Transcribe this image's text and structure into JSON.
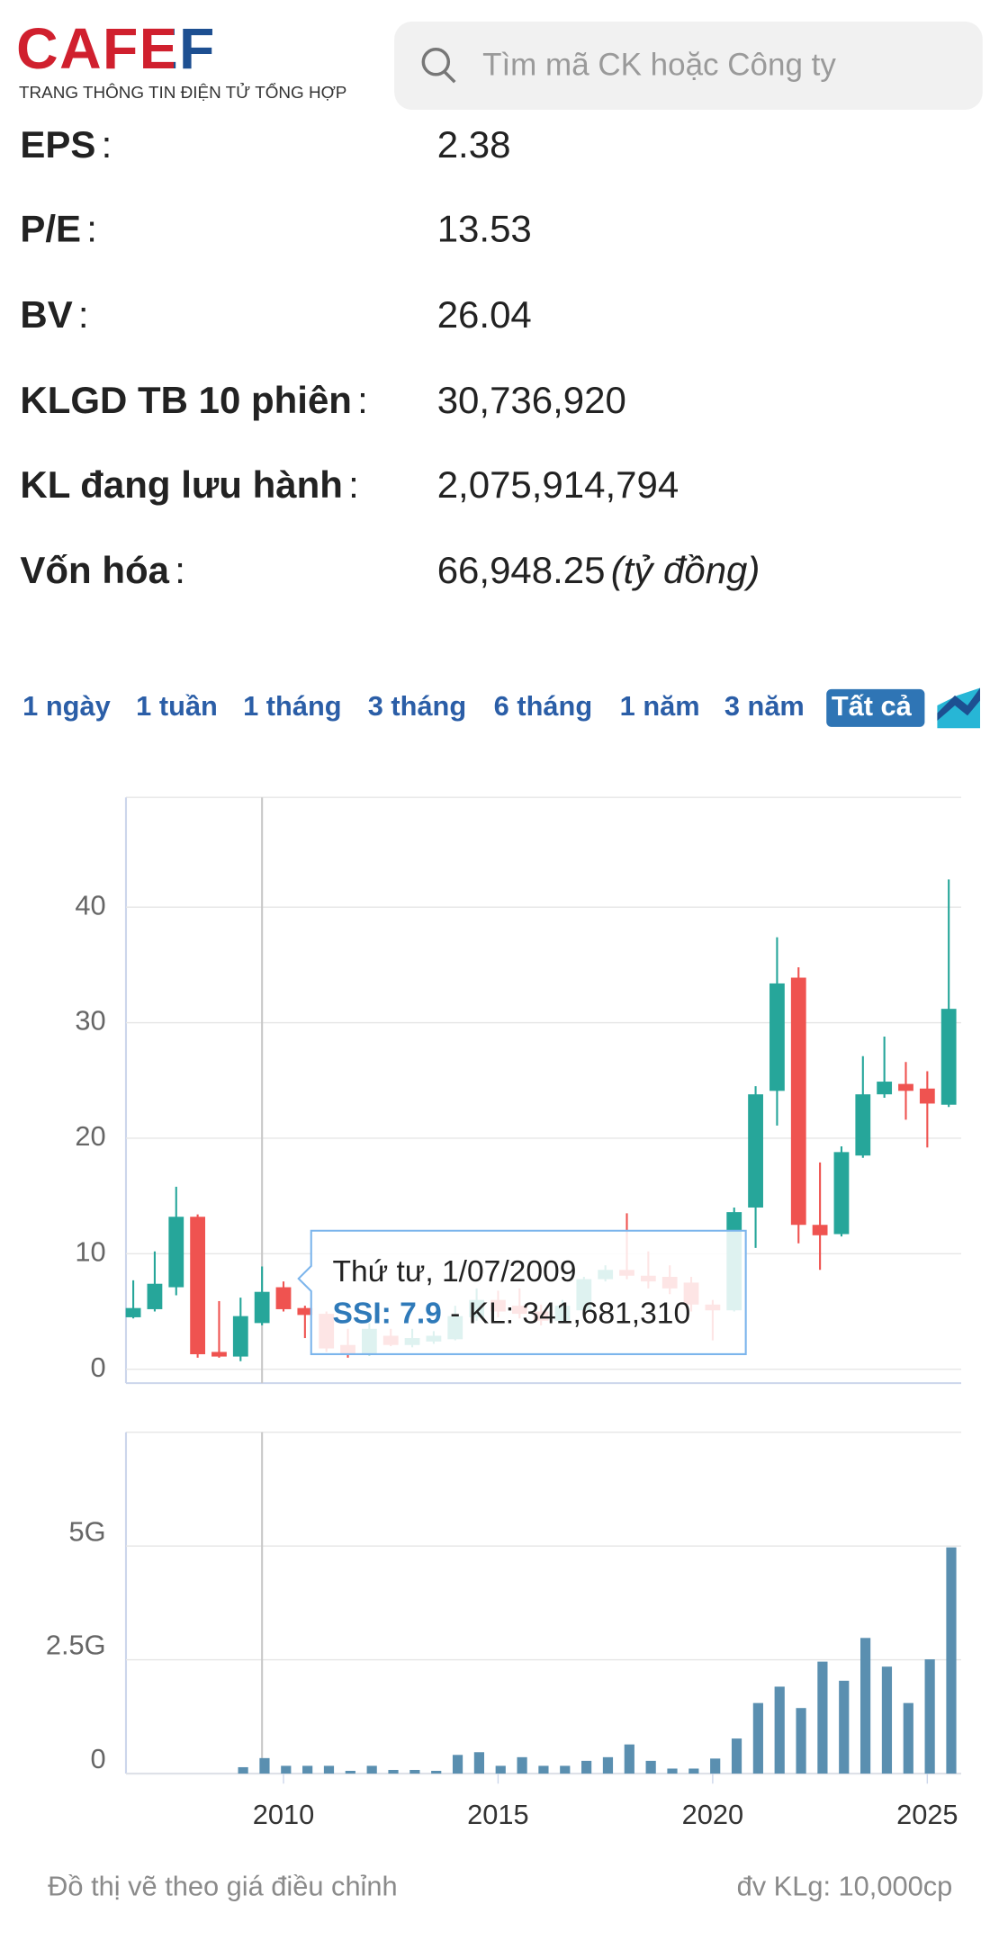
{
  "header": {
    "logo": "CAFEF",
    "tagline": "TRANG THÔNG TIN ĐIỆN TỬ TỔNG HỢP",
    "search_placeholder": "Tìm mã CK hoặc Công ty"
  },
  "info": [
    {
      "label": "EPS",
      "sep": ":",
      "value": "2.38"
    },
    {
      "label": "P/E",
      "sep": ":",
      "value": "13.53"
    },
    {
      "label": "BV",
      "sep": ":",
      "value": "26.04"
    },
    {
      "label": "KLGD TB 10 phiên",
      "sep": ":",
      "value": "30,736,920"
    },
    {
      "label": "KL đang lưu hành",
      "sep": ":",
      "value": "2,075,914,794"
    },
    {
      "label": "Vốn hóa",
      "sep": ":",
      "value": "66,948.25",
      "unit": "(tỷ đồng)"
    }
  ],
  "ranges": {
    "options": [
      "1 ngày",
      "1 tuần",
      "1 tháng",
      "3 tháng",
      "6 tháng",
      "1 năm",
      "3 năm",
      "Tất cả"
    ],
    "active": 7
  },
  "chart_data": {
    "type": "candlestick",
    "x": [
      2006.5,
      2007,
      2007.5,
      2008,
      2008.5,
      2009,
      2009.5,
      2010,
      2010.5,
      2011,
      2011.5,
      2012,
      2012.5,
      2013,
      2013.5,
      2014,
      2014.5,
      2015,
      2015.5,
      2016,
      2016.5,
      2017,
      2017.5,
      2018,
      2018.5,
      2019,
      2019.5,
      2020,
      2020.5,
      2021,
      2021.5,
      2022,
      2022.5,
      2023,
      2023.5,
      2024,
      2024.5,
      2025,
      2025.5
    ],
    "open": [
      4.5,
      5.2,
      7.1,
      13.2,
      1.5,
      1.1,
      4.0,
      7.1,
      5.3,
      4.8,
      2.1,
      1.3,
      2.9,
      2.1,
      2.4,
      2.6,
      4.5,
      6.0,
      5.5,
      5.0,
      4.2,
      5.1,
      7.8,
      8.6,
      8.1,
      8.0,
      7.5,
      5.6,
      5.1,
      14.0,
      24.1,
      33.9,
      12.5,
      11.7,
      18.5,
      23.8,
      24.7,
      24.3,
      22.9
    ],
    "high": [
      7.7,
      10.2,
      15.8,
      13.4,
      5.9,
      6.2,
      8.9,
      7.6,
      5.5,
      5.0,
      3.5,
      4.0,
      3.5,
      3.5,
      3.3,
      5.5,
      7.0,
      6.8,
      7.0,
      5.6,
      6.0,
      8.0,
      9.0,
      13.5,
      10.2,
      9.0,
      8.0,
      6.0,
      14.0,
      24.5,
      37.4,
      34.8,
      17.9,
      19.3,
      27.1,
      28.8,
      26.6,
      25.8,
      42.4
    ],
    "low": [
      4.4,
      5.0,
      6.4,
      1.0,
      1.0,
      0.7,
      3.8,
      5.0,
      2.7,
      1.5,
      1.0,
      1.2,
      2.0,
      1.9,
      2.2,
      2.5,
      4.2,
      4.5,
      4.4,
      3.8,
      4.0,
      5.0,
      7.6,
      7.8,
      7.0,
      6.5,
      5.0,
      2.5,
      5.0,
      10.5,
      21.1,
      10.9,
      8.6,
      11.5,
      18.3,
      23.5,
      21.6,
      19.2,
      22.7
    ],
    "close": [
      5.3,
      7.4,
      13.2,
      1.3,
      1.1,
      4.6,
      6.7,
      5.2,
      4.7,
      1.8,
      1.3,
      3.5,
      2.1,
      2.7,
      2.9,
      4.6,
      6.0,
      5.0,
      4.8,
      4.2,
      5.5,
      7.8,
      8.6,
      8.1,
      7.6,
      7.0,
      5.6,
      5.1,
      13.6,
      23.8,
      33.4,
      12.5,
      11.6,
      18.8,
      23.8,
      24.9,
      24.1,
      23.0,
      31.2
    ],
    "up_color": "#26a69a",
    "down_color": "#ef5350",
    "xlim": [
      2006.33,
      2025.79
    ],
    "xticks": [
      2010,
      2015,
      2020,
      2025
    ],
    "ylim": [
      -1.2,
      49.5
    ],
    "yticks": [
      0,
      10,
      20,
      30,
      40
    ],
    "grid": true,
    "volume": {
      "values": [
        null,
        null,
        null,
        null,
        null,
        140000000,
        340000000,
        170000000,
        170000000,
        170000000,
        60000000,
        170000000,
        80000000,
        80000000,
        60000000,
        410000000,
        470000000,
        170000000,
        360000000,
        170000000,
        170000000,
        280000000,
        360000000,
        640000000,
        280000000,
        110000000,
        110000000,
        330000000,
        770000000,
        1550000000,
        1910000000,
        1440000000,
        2460000000,
        2040000000,
        2980000000,
        2350000000,
        1550000000,
        2510000000,
        4970000000
      ],
      "color": "#5a8fb0",
      "ylim": [
        0,
        7500000000
      ],
      "yticks": [
        0,
        {
          "value": 2500000000,
          "label": "2.5G"
        },
        {
          "value": 5000000000,
          "label": "5G"
        }
      ]
    },
    "tooltip": {
      "date": "Thứ tư, 1/07/2009",
      "price": "SSI: 7.9",
      "volume": "- KL: 341,681,310"
    }
  },
  "footer": {
    "note": "Đồ thị vẽ theo giá điều chỉnh",
    "unit": "đv KLg: 10,000cp"
  }
}
